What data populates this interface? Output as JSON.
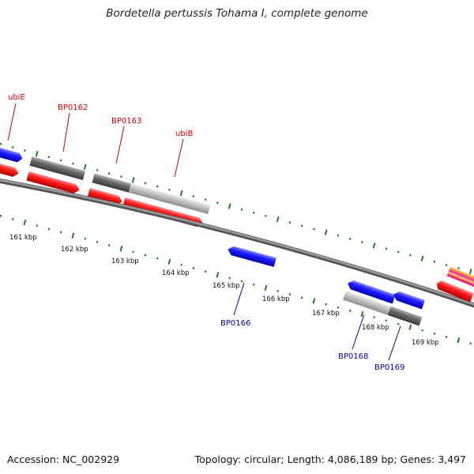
{
  "title": "Bordetella pertussis Tohama I, complete genome",
  "footer": {
    "accession": "Accession: NC_002929",
    "stats": "Topology: circular; Length: 4,086,189 bp; Genes: 3,497"
  },
  "colors": {
    "forward_gene": "#0000ee",
    "reverse_gene": "#ee0000",
    "forward_label": "#cc0000",
    "reverse_label": "#0000aa",
    "other_gene_dark": "#5f5f5f",
    "other_gene_light": "#bdbdbd",
    "tick": "#1e7f1e",
    "backbone": "#808080"
  },
  "scale": {
    "unit": "kbp",
    "ticks": [
      {
        "value": 161,
        "label": "161 kbp"
      },
      {
        "value": 162,
        "label": "162 kbp"
      },
      {
        "value": 163,
        "label": "163 kbp"
      },
      {
        "value": 164,
        "label": "164 kbp"
      },
      {
        "value": 165,
        "label": "165 kbp"
      },
      {
        "value": 166,
        "label": "166 kbp"
      },
      {
        "value": 167,
        "label": "167 kbp"
      },
      {
        "value": 168,
        "label": "168 kbp"
      },
      {
        "value": 169,
        "label": "169 kbp"
      }
    ]
  },
  "genes": [
    {
      "name": "ubiE",
      "strand": "forward"
    },
    {
      "name": "BP0162",
      "strand": "forward"
    },
    {
      "name": "BP0163",
      "strand": "forward"
    },
    {
      "name": "ubiB",
      "strand": "forward"
    },
    {
      "name": "BP0166",
      "strand": "reverse"
    },
    {
      "name": "BP0168",
      "strand": "reverse"
    },
    {
      "name": "BP0169",
      "strand": "reverse"
    }
  ]
}
